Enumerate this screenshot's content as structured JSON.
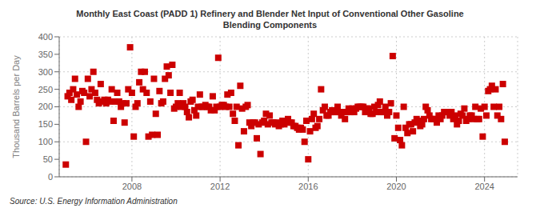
{
  "chart_data": {
    "type": "scatter",
    "title": "Monthly East Coast (PADD 1) Refinery and Blender Net Input of Conventional Other Gasoline\nBlending Components",
    "ylabel": "Thousand Barrels per Day",
    "annotations": [
      "Source: U.S. Energy Information Administration"
    ],
    "color": "#cc0000",
    "marker": "square",
    "grid": true,
    "xlim": [
      2004.7,
      2025.5
    ],
    "xticks": [
      2008,
      2012,
      2016,
      2020,
      2024
    ],
    "ylim": [
      0,
      400
    ],
    "yticks": [
      0,
      50,
      100,
      150,
      200,
      250,
      300,
      350,
      400
    ],
    "x": [
      2005.0,
      2005.083,
      2005.167,
      2005.25,
      2005.333,
      2005.417,
      2005.5,
      2005.583,
      2005.667,
      2005.75,
      2005.833,
      2005.917,
      2006.0,
      2006.083,
      2006.167,
      2006.25,
      2006.333,
      2006.417,
      2006.5,
      2006.583,
      2006.667,
      2006.75,
      2006.833,
      2006.917,
      2007.0,
      2007.083,
      2007.167,
      2007.25,
      2007.333,
      2007.417,
      2007.5,
      2007.583,
      2007.667,
      2007.75,
      2007.833,
      2007.917,
      2008.0,
      2008.083,
      2008.167,
      2008.25,
      2008.333,
      2008.417,
      2008.5,
      2008.583,
      2008.667,
      2008.75,
      2008.833,
      2008.917,
      2009.0,
      2009.083,
      2009.167,
      2009.25,
      2009.333,
      2009.417,
      2009.5,
      2009.583,
      2009.667,
      2009.75,
      2009.833,
      2009.917,
      2010.0,
      2010.083,
      2010.167,
      2010.25,
      2010.333,
      2010.417,
      2010.5,
      2010.583,
      2010.667,
      2010.75,
      2010.833,
      2010.917,
      2011.0,
      2011.083,
      2011.167,
      2011.25,
      2011.333,
      2011.417,
      2011.5,
      2011.583,
      2011.667,
      2011.75,
      2011.833,
      2011.917,
      2012.0,
      2012.083,
      2012.167,
      2012.25,
      2012.333,
      2012.417,
      2012.5,
      2012.583,
      2012.667,
      2012.75,
      2012.833,
      2012.917,
      2013.0,
      2013.083,
      2013.167,
      2013.25,
      2013.333,
      2013.417,
      2013.5,
      2013.583,
      2013.667,
      2013.75,
      2013.833,
      2013.917,
      2014.0,
      2014.083,
      2014.167,
      2014.25,
      2014.333,
      2014.417,
      2014.5,
      2014.583,
      2014.667,
      2014.75,
      2014.833,
      2014.917,
      2015.0,
      2015.083,
      2015.167,
      2015.25,
      2015.333,
      2015.417,
      2015.5,
      2015.583,
      2015.667,
      2015.75,
      2015.833,
      2015.917,
      2016.0,
      2016.083,
      2016.167,
      2016.25,
      2016.333,
      2016.417,
      2016.5,
      2016.583,
      2016.667,
      2016.75,
      2016.833,
      2016.917,
      2017.0,
      2017.083,
      2017.167,
      2017.25,
      2017.333,
      2017.417,
      2017.5,
      2017.583,
      2017.667,
      2017.75,
      2017.833,
      2017.917,
      2018.0,
      2018.083,
      2018.167,
      2018.25,
      2018.333,
      2018.417,
      2018.5,
      2018.583,
      2018.667,
      2018.75,
      2018.833,
      2018.917,
      2019.0,
      2019.083,
      2019.167,
      2019.25,
      2019.333,
      2019.417,
      2019.5,
      2019.583,
      2019.667,
      2019.75,
      2019.833,
      2019.917,
      2020.0,
      2020.083,
      2020.167,
      2020.25,
      2020.333,
      2020.417,
      2020.5,
      2020.583,
      2020.667,
      2020.75,
      2020.833,
      2020.917,
      2021.0,
      2021.083,
      2021.167,
      2021.25,
      2021.333,
      2021.417,
      2021.5,
      2021.583,
      2021.667,
      2021.75,
      2021.833,
      2021.917,
      2022.0,
      2022.083,
      2022.167,
      2022.25,
      2022.333,
      2022.417,
      2022.5,
      2022.583,
      2022.667,
      2022.75,
      2022.833,
      2022.917,
      2023.0,
      2023.083,
      2023.167,
      2023.25,
      2023.333,
      2023.417,
      2023.5,
      2023.583,
      2023.667,
      2023.75,
      2023.833,
      2023.917,
      2024.0,
      2024.083,
      2024.167,
      2024.25,
      2024.333,
      2024.417,
      2024.5,
      2024.583,
      2024.667,
      2024.75,
      2024.833,
      2024.917
    ],
    "values": [
      35,
      230,
      240,
      220,
      250,
      280,
      235,
      200,
      215,
      245,
      240,
      100,
      280,
      230,
      250,
      300,
      240,
      220,
      210,
      265,
      215,
      220,
      210,
      220,
      215,
      250,
      160,
      215,
      240,
      215,
      200,
      210,
      155,
      210,
      250,
      370,
      240,
      115,
      200,
      210,
      270,
      300,
      250,
      300,
      240,
      115,
      215,
      120,
      280,
      180,
      120,
      245,
      210,
      215,
      280,
      315,
      290,
      240,
      320,
      195,
      200,
      210,
      240,
      200,
      210,
      200,
      185,
      170,
      215,
      220,
      190,
      175,
      200,
      235,
      200,
      200,
      205,
      200,
      200,
      190,
      230,
      190,
      200,
      340,
      200,
      205,
      205,
      200,
      235,
      200,
      240,
      180,
      160,
      200,
      90,
      260,
      195,
      130,
      200,
      205,
      155,
      145,
      155,
      155,
      110,
      150,
      65,
      155,
      160,
      180,
      150,
      175,
      155,
      155,
      150,
      155,
      145,
      150,
      160,
      150,
      160,
      165,
      155,
      155,
      145,
      145,
      140,
      135,
      140,
      135,
      100,
      160,
      50,
      130,
      165,
      180,
      140,
      145,
      165,
      250,
      190,
      200,
      175,
      175,
      185,
      190,
      185,
      185,
      200,
      185,
      175,
      185,
      165,
      185,
      195,
      185,
      195,
      185,
      195,
      200,
      200,
      200,
      200,
      185,
      195,
      195,
      180,
      180,
      200,
      185,
      205,
      215,
      185,
      185,
      200,
      175,
      185,
      210,
      345,
      110,
      175,
      140,
      105,
      90,
      200,
      140,
      125,
      150,
      150,
      130,
      155,
      165,
      160,
      145,
      150,
      165,
      200,
      190,
      175,
      165,
      165,
      165,
      155,
      175,
      165,
      175,
      185,
      185,
      185,
      175,
      185,
      165,
      175,
      150,
      160,
      180,
      175,
      195,
      160,
      165,
      175,
      175,
      165,
      200,
      165,
      165,
      195,
      115,
      200,
      175,
      245,
      250,
      260,
      200,
      250,
      175,
      200,
      165,
      265,
      100
    ]
  }
}
